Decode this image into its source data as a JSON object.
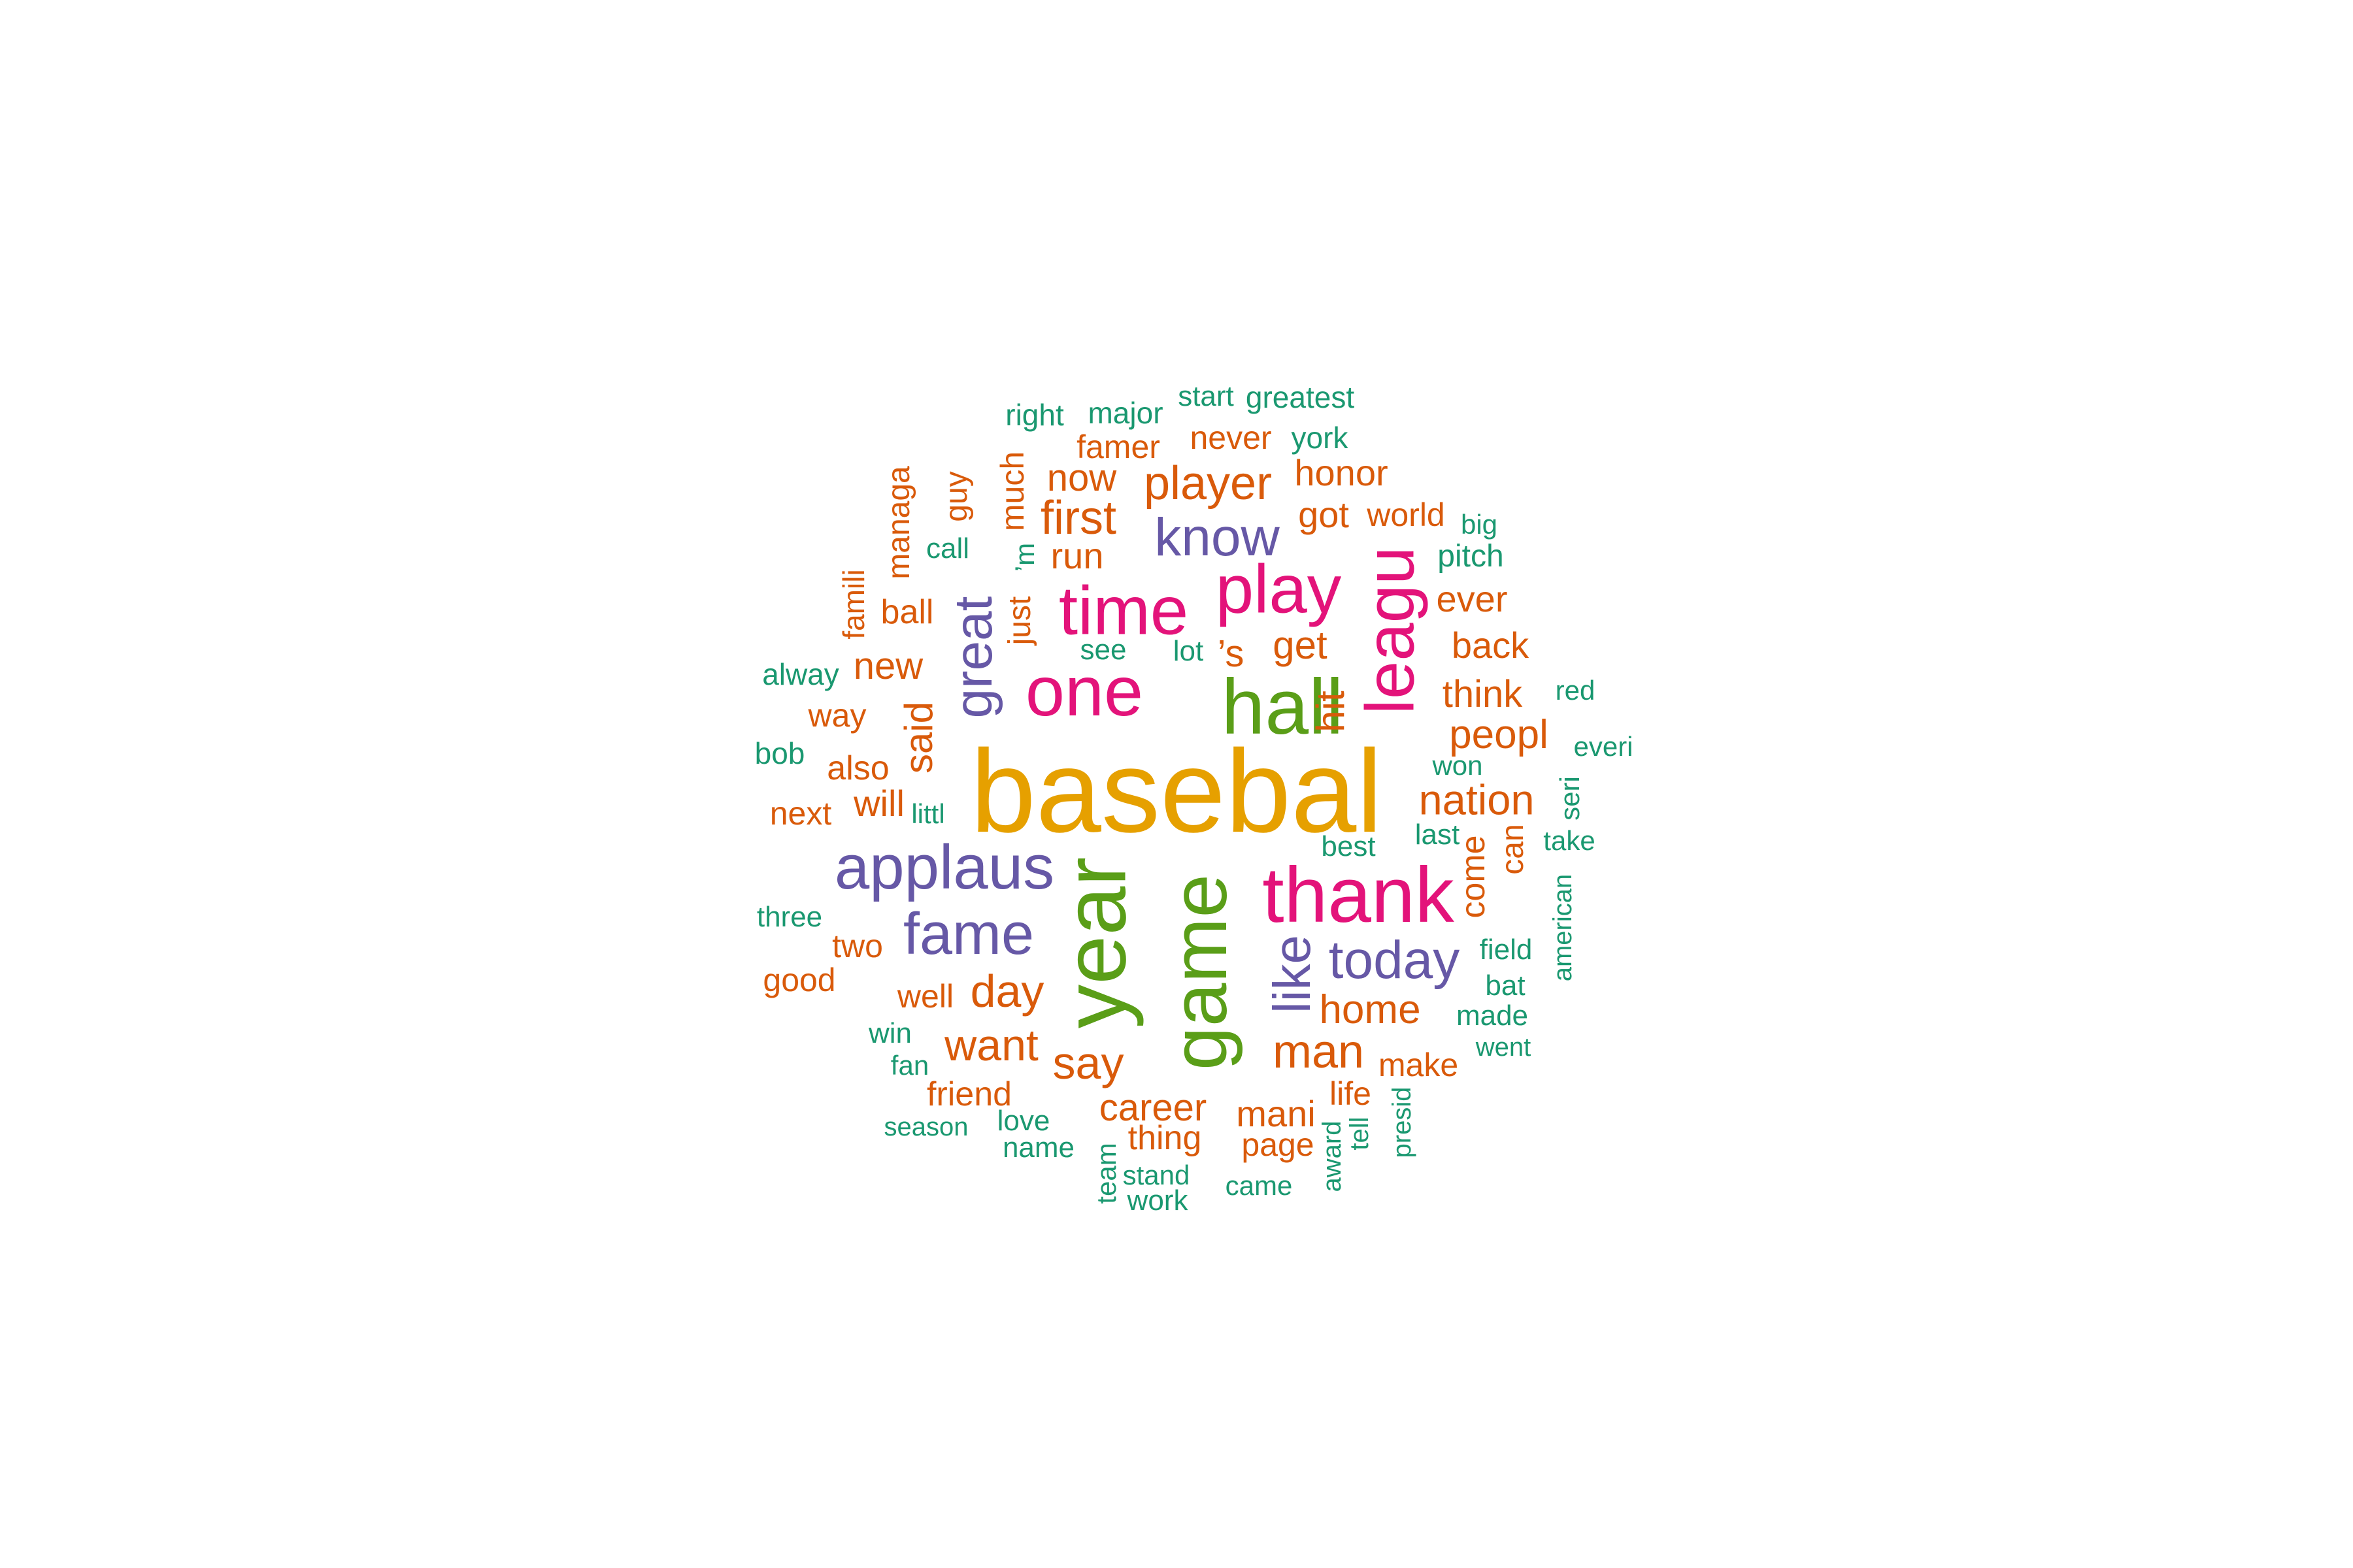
{
  "colors": {
    "gold": "#E6A000",
    "green": "#5A9E18",
    "magenta": "#E3137A",
    "purple": "#6658A6",
    "orange": "#D95A0A",
    "teal": "#1A9870"
  },
  "words": [
    {
      "text": "basebal",
      "color": "gold",
      "rank": 1
    },
    {
      "text": "year",
      "color": "green",
      "rank": 2
    },
    {
      "text": "game",
      "color": "green",
      "rank": 3
    },
    {
      "text": "hall",
      "color": "green",
      "rank": 4
    },
    {
      "text": "thank",
      "color": "magenta",
      "rank": 5
    },
    {
      "text": "one",
      "color": "magenta",
      "rank": 6
    },
    {
      "text": "time",
      "color": "magenta",
      "rank": 7
    },
    {
      "text": "play",
      "color": "magenta",
      "rank": 8
    },
    {
      "text": "leagu",
      "color": "magenta",
      "rank": 9
    },
    {
      "text": "applaus",
      "color": "purple",
      "rank": 10
    },
    {
      "text": "fame",
      "color": "purple",
      "rank": 11
    },
    {
      "text": "great",
      "color": "purple",
      "rank": 12
    },
    {
      "text": "know",
      "color": "purple",
      "rank": 13
    },
    {
      "text": "today",
      "color": "purple",
      "rank": 14
    },
    {
      "text": "like",
      "color": "purple",
      "rank": 15
    },
    {
      "text": "player",
      "color": "orange"
    },
    {
      "text": "first",
      "color": "orange"
    },
    {
      "text": "nation",
      "color": "orange"
    },
    {
      "text": "man",
      "color": "orange"
    },
    {
      "text": "day",
      "color": "orange"
    },
    {
      "text": "want",
      "color": "orange"
    },
    {
      "text": "home",
      "color": "orange"
    },
    {
      "text": "peopl",
      "color": "orange"
    },
    {
      "text": "say",
      "color": "orange"
    },
    {
      "text": "said",
      "color": "orange"
    },
    {
      "text": "hit",
      "color": "orange"
    },
    {
      "text": "career",
      "color": "orange"
    },
    {
      "text": "think",
      "color": "orange"
    },
    {
      "text": "get",
      "color": "orange"
    },
    {
      "text": "new",
      "color": "orange"
    },
    {
      "text": "mani",
      "color": "orange"
    },
    {
      "text": "’s",
      "color": "orange"
    },
    {
      "text": "now",
      "color": "orange"
    },
    {
      "text": "run",
      "color": "orange"
    },
    {
      "text": "honor",
      "color": "orange"
    },
    {
      "text": "got",
      "color": "orange"
    },
    {
      "text": "ever",
      "color": "orange"
    },
    {
      "text": "back",
      "color": "orange"
    },
    {
      "text": "come",
      "color": "orange"
    },
    {
      "text": "will",
      "color": "orange"
    },
    {
      "text": "also",
      "color": "orange"
    },
    {
      "text": "much",
      "color": "orange"
    },
    {
      "text": "never",
      "color": "orange"
    },
    {
      "text": "famer",
      "color": "orange"
    },
    {
      "text": "world",
      "color": "orange"
    },
    {
      "text": "thing",
      "color": "orange"
    },
    {
      "text": "friend",
      "color": "orange"
    },
    {
      "text": "make",
      "color": "orange"
    },
    {
      "text": "life",
      "color": "orange"
    },
    {
      "text": "page",
      "color": "orange"
    },
    {
      "text": "just",
      "color": "orange"
    },
    {
      "text": "can",
      "color": "orange"
    },
    {
      "text": "way",
      "color": "orange"
    },
    {
      "text": "next",
      "color": "orange"
    },
    {
      "text": "two",
      "color": "orange"
    },
    {
      "text": "good",
      "color": "orange"
    },
    {
      "text": "well",
      "color": "orange"
    },
    {
      "text": "ball",
      "color": "orange"
    },
    {
      "text": "managa",
      "color": "orange"
    },
    {
      "text": "guy",
      "color": "orange"
    },
    {
      "text": "famili",
      "color": "orange"
    },
    {
      "text": "right",
      "color": "teal"
    },
    {
      "text": "major",
      "color": "teal"
    },
    {
      "text": "start",
      "color": "teal"
    },
    {
      "text": "greatest",
      "color": "teal"
    },
    {
      "text": "york",
      "color": "teal"
    },
    {
      "text": "big",
      "color": "teal"
    },
    {
      "text": "pitch",
      "color": "teal"
    },
    {
      "text": "call",
      "color": "teal"
    },
    {
      "text": "’m",
      "color": "teal"
    },
    {
      "text": "see",
      "color": "teal"
    },
    {
      "text": "lot",
      "color": "teal"
    },
    {
      "text": "alway",
      "color": "teal"
    },
    {
      "text": "red",
      "color": "teal"
    },
    {
      "text": "everi",
      "color": "teal"
    },
    {
      "text": "bob",
      "color": "teal"
    },
    {
      "text": "won",
      "color": "teal"
    },
    {
      "text": "seri",
      "color": "teal"
    },
    {
      "text": "littl",
      "color": "teal"
    },
    {
      "text": "last",
      "color": "teal"
    },
    {
      "text": "take",
      "color": "teal"
    },
    {
      "text": "best",
      "color": "teal"
    },
    {
      "text": "american",
      "color": "teal"
    },
    {
      "text": "three",
      "color": "teal"
    },
    {
      "text": "field",
      "color": "teal"
    },
    {
      "text": "bat",
      "color": "teal"
    },
    {
      "text": "made",
      "color": "teal"
    },
    {
      "text": "win",
      "color": "teal"
    },
    {
      "text": "went",
      "color": "teal"
    },
    {
      "text": "fan",
      "color": "teal"
    },
    {
      "text": "season",
      "color": "teal"
    },
    {
      "text": "love",
      "color": "teal"
    },
    {
      "text": "name",
      "color": "teal"
    },
    {
      "text": "team",
      "color": "teal"
    },
    {
      "text": "stand",
      "color": "teal"
    },
    {
      "text": "work",
      "color": "teal"
    },
    {
      "text": "came",
      "color": "teal"
    },
    {
      "text": "award",
      "color": "teal"
    },
    {
      "text": "tell",
      "color": "teal"
    },
    {
      "text": "presid",
      "color": "teal"
    }
  ]
}
